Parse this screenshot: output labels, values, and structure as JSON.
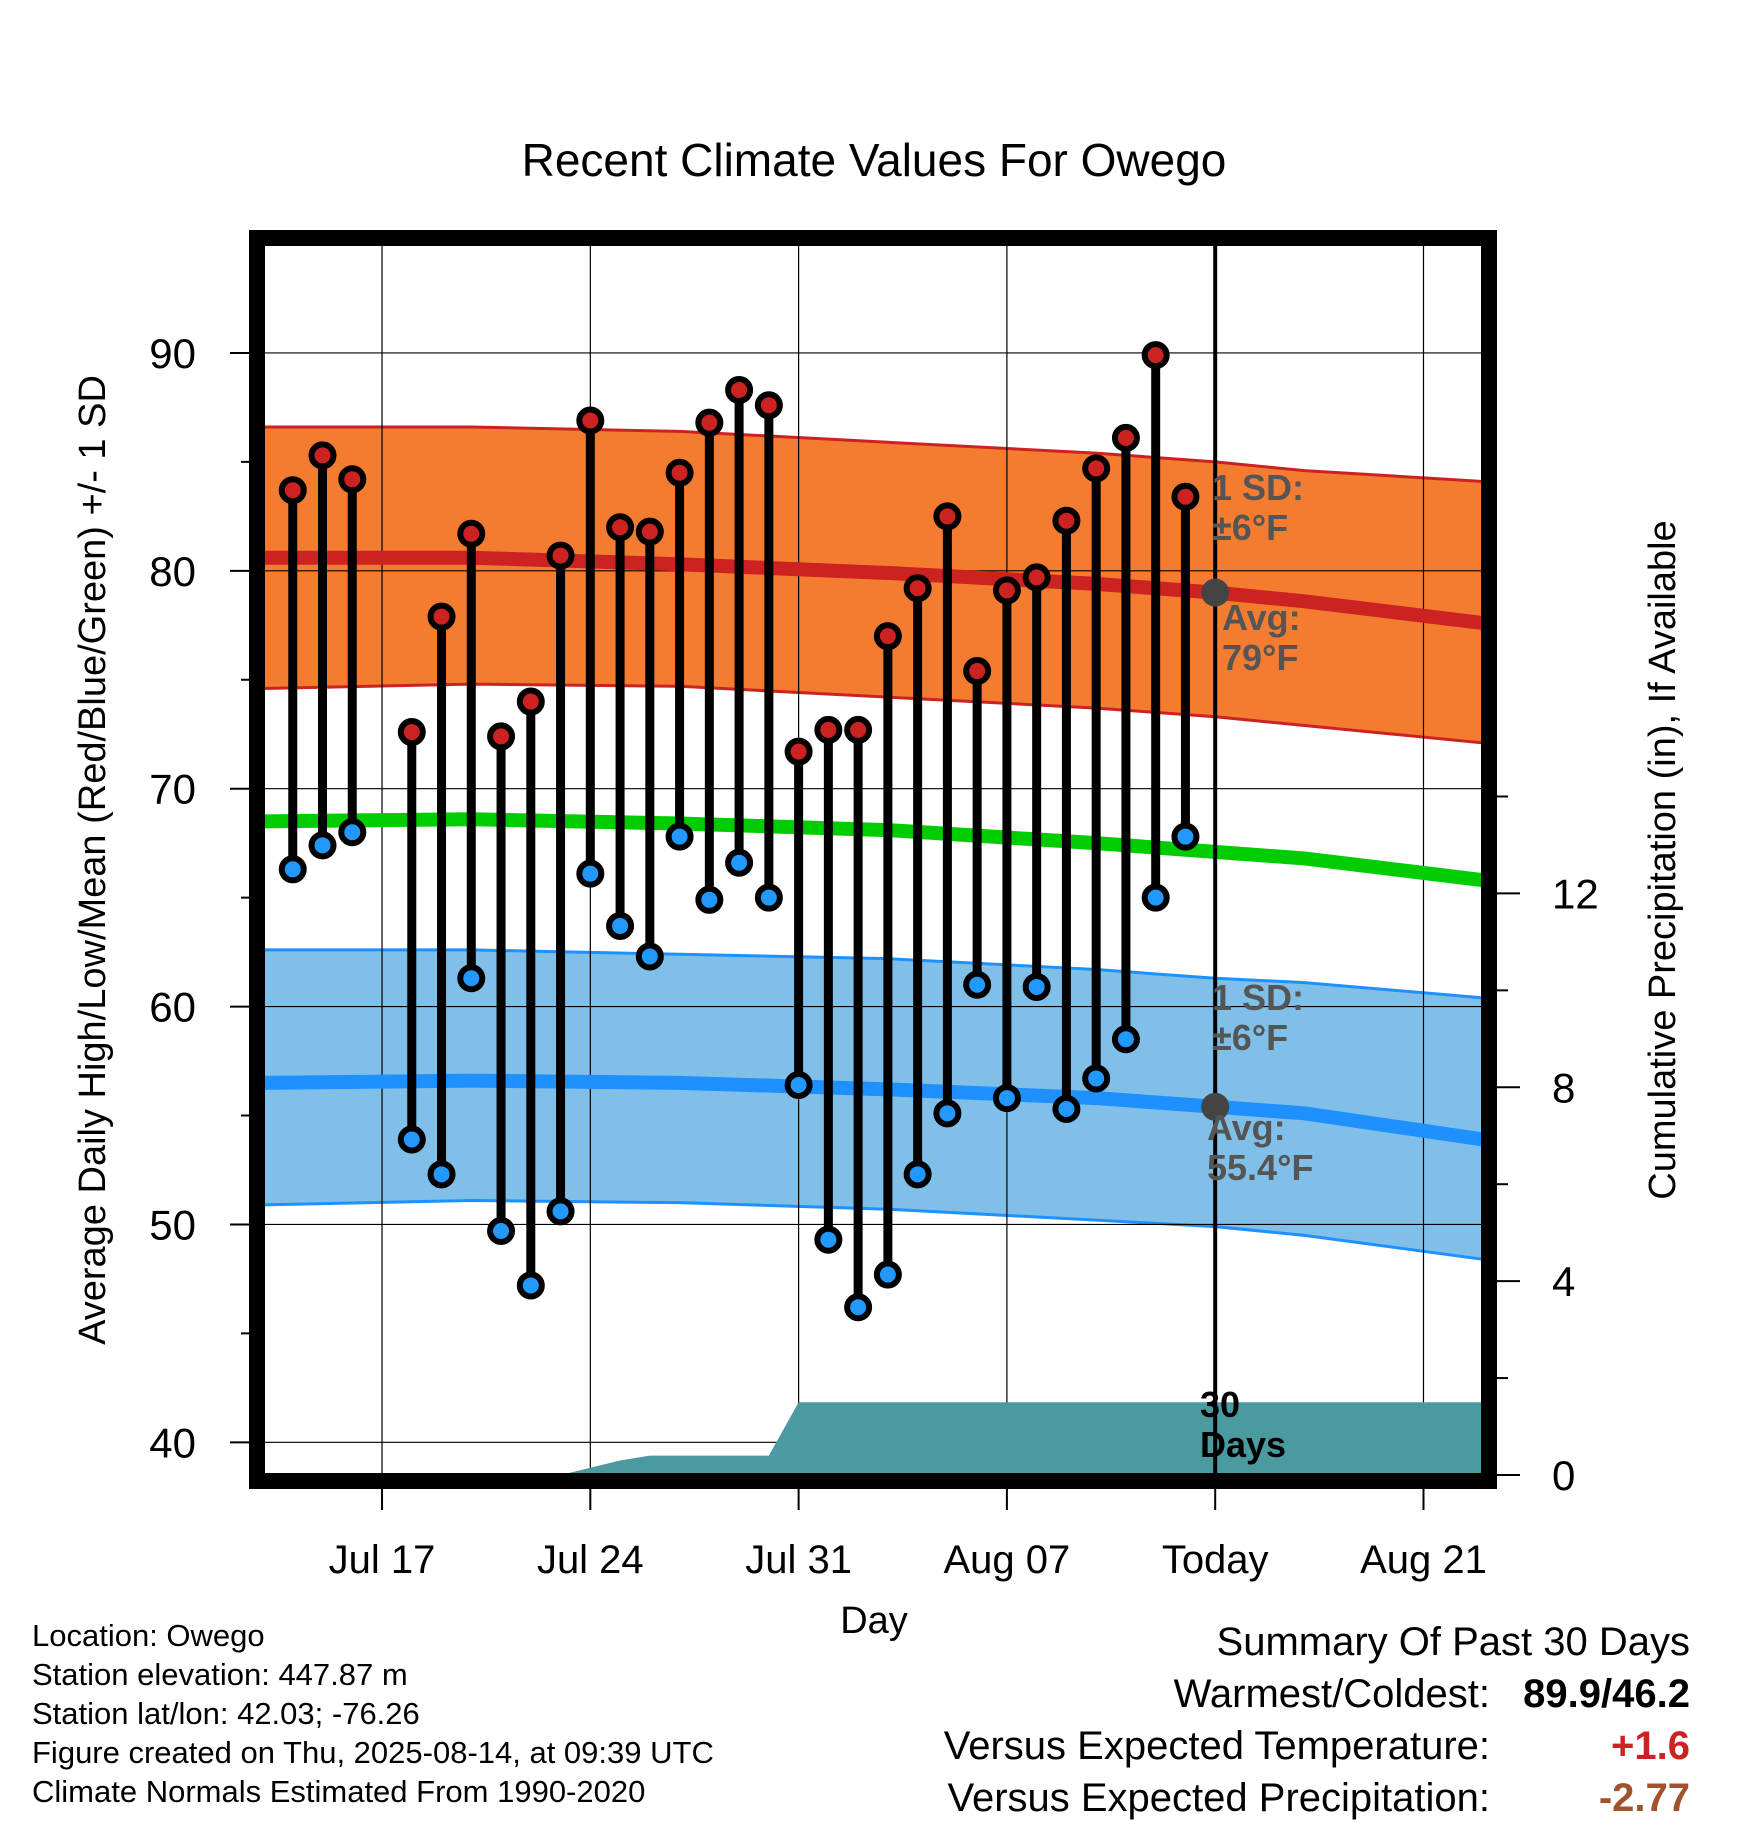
{
  "chart_data": {
    "type": "line",
    "title": "Recent Climate Values For Owego",
    "xlabel": "Day",
    "ylabel": "Average Daily High/Low/Mean (Red/Blue/Green) +/- 1 SD",
    "y2label": "Cumulative Precipitation (in), If Available",
    "ylim": [
      38.5,
      95
    ],
    "y2lim": [
      0,
      25.4
    ],
    "yticks": [
      40,
      50,
      60,
      70,
      80,
      90
    ],
    "y2ticks": [
      0,
      4,
      8,
      12
    ],
    "x_tick_labels": [
      "Jul 17",
      "Jul 24",
      "Jul 31",
      "Aug 07",
      "Today",
      "Aug 21"
    ],
    "x_tick_dates": [
      "2025-07-17",
      "2025-07-24",
      "2025-07-31",
      "2025-08-07",
      "2025-08-14",
      "2025-08-21"
    ],
    "xlim": [
      "2025-07-13",
      "2025-08-23"
    ],
    "today": "2025-08-14",
    "dates": [
      "2025-07-14",
      "2025-07-15",
      "2025-07-16",
      "2025-07-17",
      "2025-07-18",
      "2025-07-19",
      "2025-07-20",
      "2025-07-21",
      "2025-07-22",
      "2025-07-23",
      "2025-07-24",
      "2025-07-25",
      "2025-07-26",
      "2025-07-27",
      "2025-07-28",
      "2025-07-29",
      "2025-07-30",
      "2025-07-31",
      "2025-08-01",
      "2025-08-02",
      "2025-08-03",
      "2025-08-04",
      "2025-08-05",
      "2025-08-06",
      "2025-08-07",
      "2025-08-08",
      "2025-08-09",
      "2025-08-10",
      "2025-08-11",
      "2025-08-12",
      "2025-08-13"
    ],
    "series": [
      {
        "name": "High",
        "color": "#cc2222",
        "values": [
          83.7,
          85.3,
          84.2,
          null,
          72.6,
          77.9,
          81.7,
          72.4,
          74.0,
          80.7,
          86.9,
          82.0,
          81.8,
          84.5,
          86.8,
          88.3,
          87.6,
          71.7,
          72.7,
          72.7,
          77.0,
          79.2,
          82.5,
          75.4,
          79.1,
          79.7,
          82.3,
          84.7,
          86.1,
          89.9,
          83.4
        ]
      },
      {
        "name": "Low",
        "color": "#2299ff",
        "values": [
          66.3,
          67.4,
          68.0,
          null,
          53.9,
          52.3,
          61.3,
          49.7,
          47.2,
          50.6,
          66.1,
          63.7,
          62.3,
          67.8,
          64.9,
          66.6,
          65.0,
          56.4,
          49.3,
          46.2,
          47.7,
          52.3,
          55.1,
          61.0,
          55.8,
          60.9,
          55.3,
          56.7,
          58.5,
          65.0,
          67.8
        ]
      }
    ],
    "normals_dates": [
      "2025-07-13",
      "2025-07-20",
      "2025-07-27",
      "2025-08-03",
      "2025-08-10",
      "2025-08-14",
      "2025-08-17",
      "2025-08-23"
    ],
    "normal_high": [
      80.6,
      80.6,
      80.3,
      79.9,
      79.4,
      79.0,
      78.6,
      77.6
    ],
    "normal_high_sd_upper": [
      86.6,
      86.6,
      86.4,
      85.9,
      85.4,
      85.0,
      84.6,
      84.1
    ],
    "normal_high_sd_lower": [
      74.6,
      74.8,
      74.7,
      74.2,
      73.7,
      73.3,
      72.9,
      72.1
    ],
    "normal_mean": [
      68.5,
      68.6,
      68.4,
      68.1,
      67.5,
      67.1,
      66.8,
      65.8
    ],
    "normal_low": [
      56.5,
      56.6,
      56.5,
      56.2,
      55.8,
      55.4,
      55.1,
      53.9
    ],
    "normal_low_sd_upper": [
      62.6,
      62.6,
      62.4,
      62.2,
      61.7,
      61.3,
      61.1,
      60.4
    ],
    "normal_low_sd_lower": [
      50.9,
      51.1,
      51.0,
      50.7,
      50.2,
      49.9,
      49.5,
      48.4
    ],
    "precip_dates": [
      "2025-07-23",
      "2025-07-25",
      "2025-07-26",
      "2025-07-27",
      "2025-07-30",
      "2025-07-31",
      "2025-08-23"
    ],
    "precip_cumulative": [
      0.0,
      0.3,
      0.4,
      0.4,
      0.4,
      1.5,
      1.5
    ],
    "colors": {
      "high_band": "#f47c30",
      "high_line": "#cc2222",
      "low_band": "#80c0e8",
      "low_line": "#1e90ff",
      "mean_line": "#00cc00",
      "precip": "#4a9aa0",
      "high_marker": "#cc2222",
      "low_marker": "#2299ff",
      "today_dot": "#444444"
    },
    "annotations": {
      "high_sd": [
        "1 SD:",
        "±6°F"
      ],
      "high_avg": [
        "Avg:",
        "79°F"
      ],
      "low_sd": [
        "1 SD:",
        "±6°F"
      ],
      "low_avg": [
        "Avg:",
        "55.4°F"
      ],
      "precip": [
        "30",
        "Days"
      ]
    }
  },
  "footer": {
    "location": "Location: Owego",
    "elevation": "Station elevation: 447.87 m",
    "latlon": "Station lat/lon: 42.03; -76.26",
    "created": "Figure created on Thu, 2025-08-14, at 09:39 UTC",
    "normals": "Climate Normals Estimated From 1990-2020"
  },
  "summary": {
    "heading": "Summary Of Past 30 Days",
    "warm_label": "Warmest/Coldest:",
    "warm_value": "89.9/46.2",
    "temp_label": "Versus Expected Temperature:",
    "temp_value": "+1.6",
    "temp_color": "#cc2222",
    "precip_label": "Versus Expected Precipitation:",
    "precip_value": "-2.77",
    "precip_color": "#a0522d"
  }
}
